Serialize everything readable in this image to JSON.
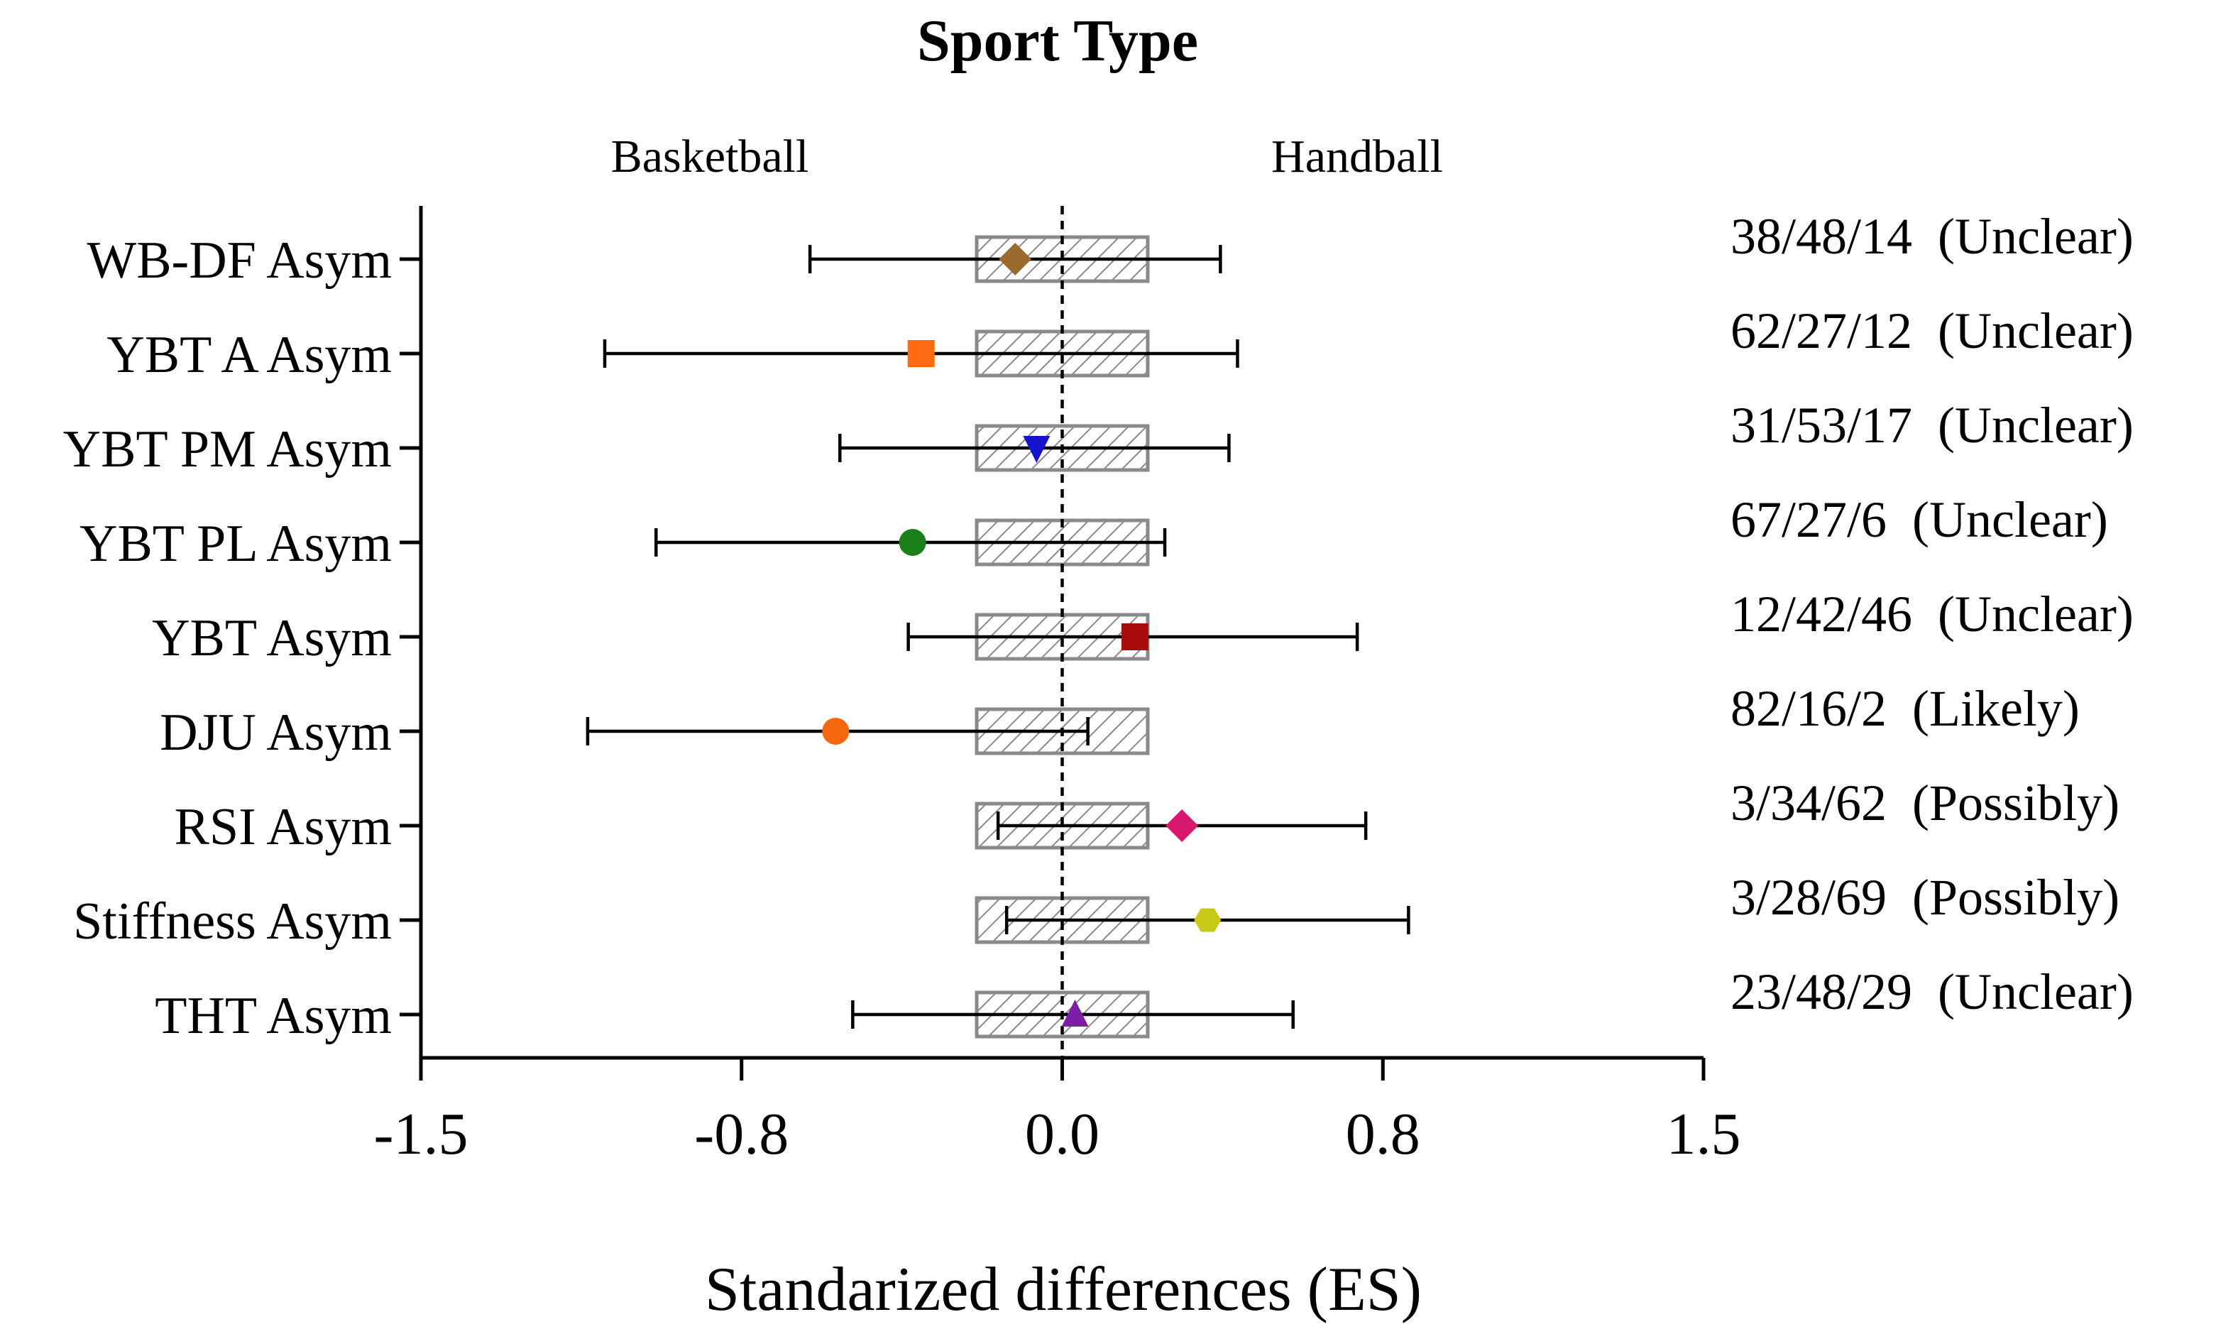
{
  "chart_data": {
    "type": "forest",
    "title": "Sport Type",
    "left_group_label": "Basketball",
    "right_group_label": "Handball",
    "xlabel": "Standarized differences (ES)",
    "xlim": [
      -1.5,
      1.5
    ],
    "xticks": [
      -1.5,
      -0.75,
      0.0,
      0.75,
      1.5
    ],
    "xtick_labels": [
      "-1.5",
      "-0.8",
      "0.0",
      "0.8",
      "1.5"
    ],
    "reference_line": 0.0,
    "trivial_zone": [
      -0.2,
      0.2
    ],
    "rows": [
      {
        "label": "WB-DF Asym",
        "es": -0.11,
        "lower": -0.59,
        "upper": 0.37,
        "marker": "diamond",
        "color": "#9B6A2F",
        "prob": "38/48/14",
        "inference": "(Unclear)"
      },
      {
        "label": "YBT A Asym",
        "es": -0.33,
        "lower": -1.07,
        "upper": 0.41,
        "marker": "square",
        "color": "#FF6A13",
        "prob": "62/27/12",
        "inference": "(Unclear)"
      },
      {
        "label": "YBT PM Asym",
        "es": -0.06,
        "lower": -0.52,
        "upper": 0.39,
        "marker": "triangle-down",
        "color": "#1414CC",
        "prob": "31/53/17",
        "inference": "(Unclear)"
      },
      {
        "label": "YBT PL Asym",
        "es": -0.35,
        "lower": -0.95,
        "upper": 0.24,
        "marker": "circle",
        "color": "#1B7F1B",
        "prob": "67/27/6",
        "inference": "(Unclear)"
      },
      {
        "label": "YBT Asym",
        "es": 0.17,
        "lower": -0.36,
        "upper": 0.69,
        "marker": "square",
        "color": "#A80C0C",
        "prob": "12/42/46",
        "inference": "(Unclear)"
      },
      {
        "label": "DJU Asym",
        "es": -0.53,
        "lower": -1.11,
        "upper": 0.06,
        "marker": "circle",
        "color": "#F5670F",
        "prob": "82/16/2",
        "inference": "(Likely)"
      },
      {
        "label": "RSI Asym",
        "es": 0.28,
        "lower": -0.15,
        "upper": 0.71,
        "marker": "diamond",
        "color": "#D6186E",
        "prob": "3/34/62",
        "inference": "(Possibly)"
      },
      {
        "label": "Stiffness Asym",
        "es": 0.34,
        "lower": -0.13,
        "upper": 0.81,
        "marker": "hexagon",
        "color": "#C8C818",
        "prob": "3/28/69",
        "inference": "(Possibly)"
      },
      {
        "label": "THT Asym",
        "es": 0.03,
        "lower": -0.49,
        "upper": 0.54,
        "marker": "triangle-up",
        "color": "#7A1FA6",
        "prob": "23/48/29",
        "inference": "(Unclear)"
      }
    ]
  }
}
